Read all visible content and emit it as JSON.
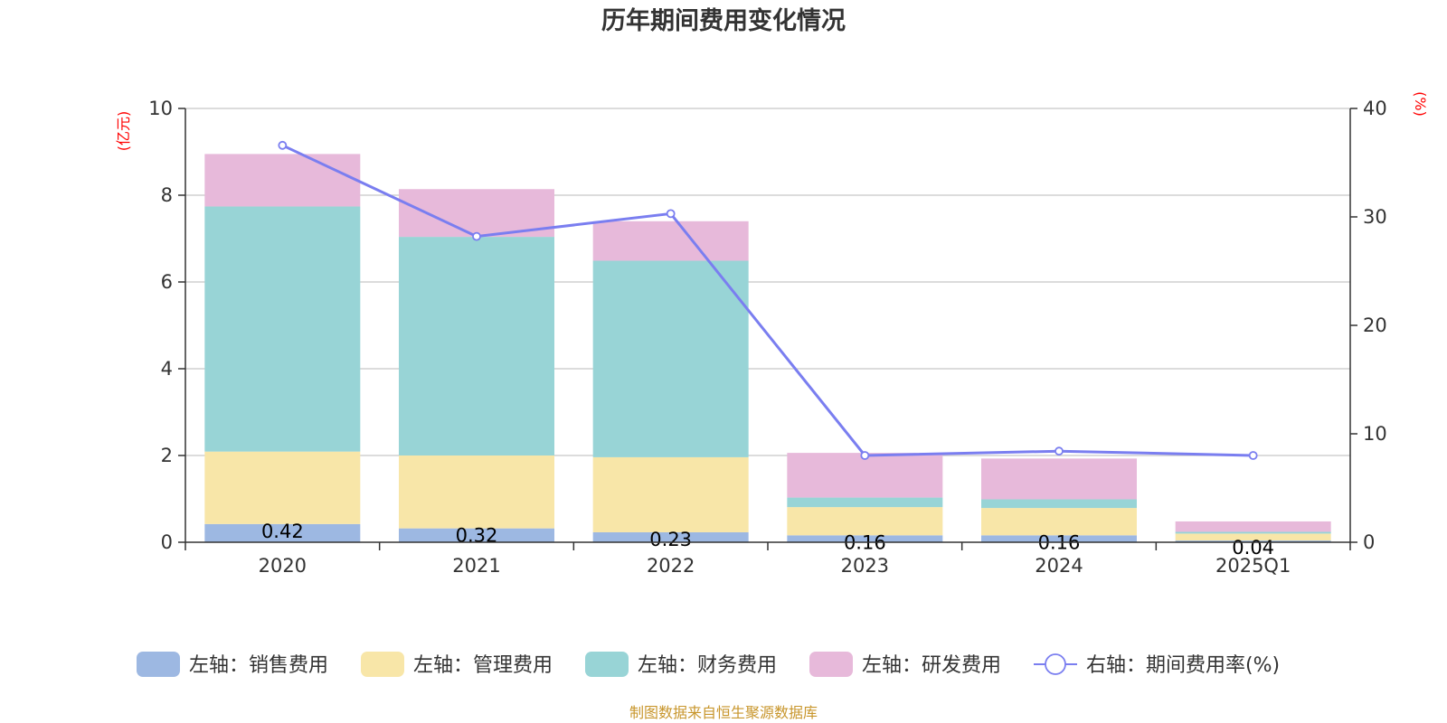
{
  "chart_data": {
    "type": "bar",
    "title": "历年期间费用变化情况",
    "categories": [
      "2020",
      "2021",
      "2022",
      "2023",
      "2024",
      "2025Q1"
    ],
    "left_axis": {
      "unit": "(亿元)",
      "ylim": [
        0,
        10
      ],
      "ticks": [
        "0",
        "2",
        "4",
        "6",
        "8",
        "10"
      ]
    },
    "right_axis": {
      "unit": "(%)",
      "ylim": [
        0,
        40
      ],
      "ticks": [
        "0",
        "10",
        "20",
        "30",
        "40"
      ]
    },
    "series": [
      {
        "name": "左轴：销售费用",
        "type": "bar",
        "axis": "left",
        "color": "#9db8e2",
        "values": [
          0.42,
          0.32,
          0.23,
          0.16,
          0.16,
          0.04
        ],
        "labels": [
          "0.42",
          "0.32",
          "0.23",
          "0.16",
          "0.16",
          "0.04"
        ]
      },
      {
        "name": "左轴：管理费用",
        "type": "bar",
        "axis": "left",
        "color": "#f8e6a8",
        "values": [
          1.67,
          1.68,
          1.73,
          0.65,
          0.63,
          0.16
        ]
      },
      {
        "name": "左轴：财务费用",
        "type": "bar",
        "axis": "left",
        "color": "#98d4d6",
        "values": [
          5.65,
          5.04,
          4.53,
          0.22,
          0.2,
          0.04
        ]
      },
      {
        "name": "左轴：研发费用",
        "type": "bar",
        "axis": "left",
        "color": "#e7b9da",
        "values": [
          1.21,
          1.1,
          0.91,
          1.03,
          0.94,
          0.24
        ]
      },
      {
        "name": "右轴：期间费用率(%)",
        "type": "line",
        "axis": "right",
        "color": "#7a7ef0",
        "values": [
          36.6,
          28.2,
          30.3,
          8.0,
          8.4,
          8.0
        ]
      }
    ],
    "legend_position": "bottom",
    "grid": true
  },
  "footer": "制图数据来自恒生聚源数据库"
}
